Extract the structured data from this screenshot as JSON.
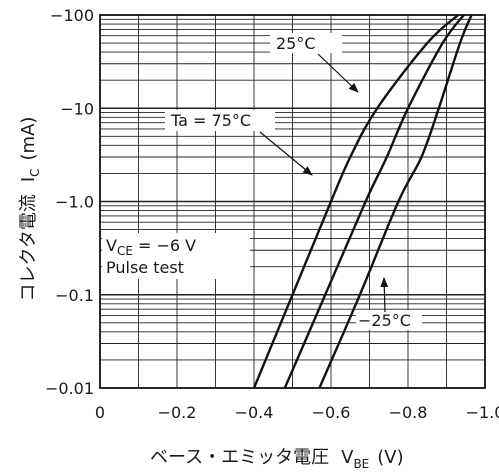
{
  "chart_data": {
    "type": "line",
    "xaxis": {
      "label": "ベース・エミッタ電圧",
      "symbol": "V",
      "symbol_sub": "BE",
      "unit": "(V)",
      "range": [
        0,
        -1.0
      ],
      "ticks": [
        "0",
        "−0.2",
        "−0.4",
        "−0.6",
        "−0.8",
        "−1.0"
      ]
    },
    "yaxis": {
      "label": "コレクタ電流",
      "symbol": "I",
      "symbol_sub": "C",
      "unit": "(mA)",
      "scale": "log",
      "range": [
        -0.01,
        -100
      ],
      "ticks": [
        "−0.01",
        "−0.1",
        "−1.0",
        "−10",
        "−100"
      ]
    },
    "grid": true,
    "series": [
      {
        "name": "75°C",
        "x": [
          -0.4,
          -0.5,
          -0.6,
          -0.65,
          -0.72,
          -0.85,
          -0.93
        ],
        "y": [
          -0.01,
          -0.1,
          -1,
          -3,
          -10,
          -50,
          -100
        ]
      },
      {
        "name": "25°C",
        "x": [
          -0.48,
          -0.585,
          -0.69,
          -0.745,
          -0.8,
          -0.89,
          -0.945
        ],
        "y": [
          -0.01,
          -0.1,
          -1,
          -3,
          -10,
          -50,
          -100
        ]
      },
      {
        "name": "−25°C",
        "x": [
          -0.57,
          -0.675,
          -0.775,
          -0.835,
          -0.88,
          -0.935,
          -0.965
        ],
        "y": [
          -0.01,
          -0.1,
          -1,
          -3,
          -10,
          -50,
          -100
        ]
      }
    ],
    "annotations": {
      "ta_label": "Ta = 75°C",
      "label_25": "25°C",
      "label_m25": "−25°C",
      "vce_symbol": "V",
      "vce_sub": "CE",
      "vce_value": " = −6 V",
      "pulse": "Pulse test"
    }
  }
}
